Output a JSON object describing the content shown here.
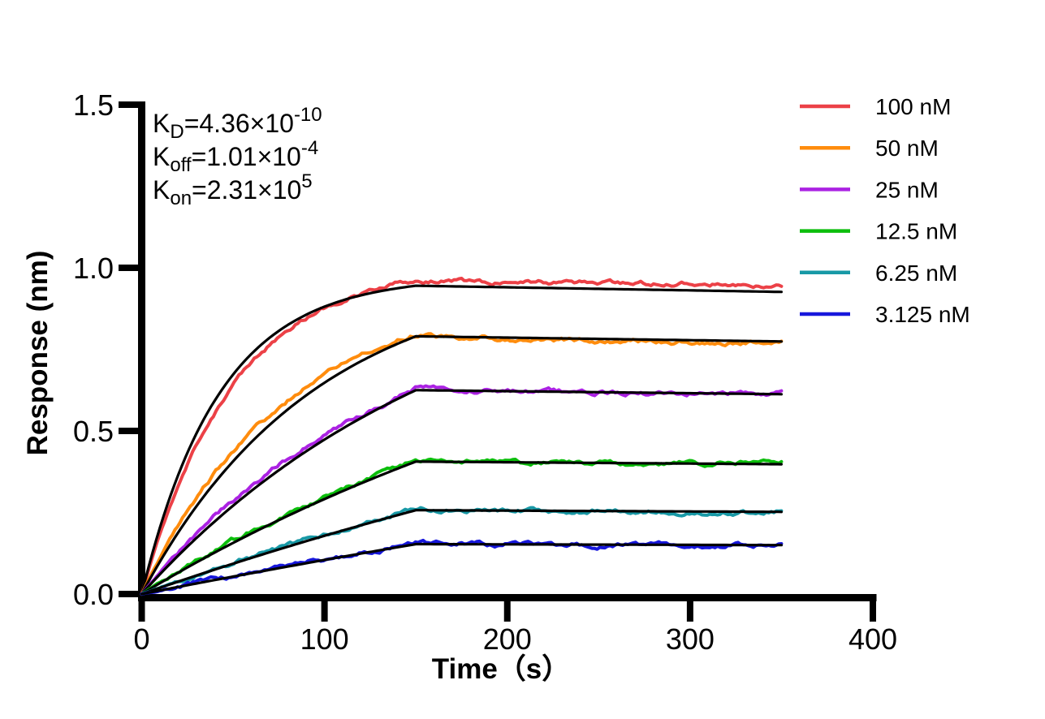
{
  "page": {
    "background": "#ffffff"
  },
  "annotations": {
    "kinetics_lines": [
      {
        "base": "K",
        "sub": "D",
        "value": "=4.36×10",
        "exponent": "-10"
      },
      {
        "base": "K",
        "sub": "off",
        "value": "=1.01×10",
        "exponent": "-4"
      },
      {
        "base": "K",
        "sub": "on",
        "value": "=2.31×10",
        "exponent": "5"
      }
    ]
  },
  "chart_data": {
    "type": "line",
    "title": "",
    "xlabel": "Time（s）",
    "ylabel": "Response (nm)",
    "xlim": [
      0,
      400
    ],
    "ylim": [
      0,
      1.5
    ],
    "xticks": {
      "values": [
        0,
        100,
        200,
        300,
        400
      ],
      "labels": [
        "0",
        "100",
        "200",
        "300",
        "400"
      ]
    },
    "yticks": {
      "values": [
        0,
        0.5,
        1.0,
        1.5
      ],
      "labels": [
        "0.0",
        "0.5",
        "1.0",
        "1.5"
      ]
    },
    "grid": false,
    "legend_position": "outside-top-right",
    "axis_color": "#000000",
    "fit_color": "#000000",
    "kinetics": {
      "KD": "4.36×10⁻¹⁰",
      "Koff": "1.01×10⁻⁴",
      "Kon": "2.31×10⁵"
    },
    "phases": {
      "association_s": [
        0,
        150
      ],
      "dissociation_s": [
        150,
        350
      ]
    },
    "series": [
      {
        "label": "100 nM",
        "color": "#EC4147",
        "kobs_per_s": 0.02,
        "response_at_150s": 0.962,
        "response_at_350s": 0.95,
        "fit": {
          "kobs_per_s": 0.0235,
          "response_at_150s": 0.945,
          "koff_per_s": 0.000101
        }
      },
      {
        "label": "50 nM",
        "color": "#FF8C0D",
        "kobs_per_s": 0.0125,
        "response_at_150s": 0.795,
        "response_at_350s": 0.77,
        "fit": {
          "kobs_per_s": 0.0105,
          "response_at_150s": 0.79,
          "koff_per_s": 0.000101
        }
      },
      {
        "label": "25 nM",
        "color": "#AB22E3",
        "kobs_per_s": 0.0068,
        "response_at_150s": 0.63,
        "response_at_350s": 0.616,
        "fit": {
          "kobs_per_s": 0.0058,
          "response_at_150s": 0.625,
          "koff_per_s": 0.000101
        }
      },
      {
        "label": "12.5 nM",
        "color": "#0CBE0C",
        "kobs_per_s": 0.0034,
        "response_at_150s": 0.41,
        "response_at_350s": 0.401,
        "fit": {
          "kobs_per_s": 0.0031,
          "response_at_150s": 0.406,
          "koff_per_s": 0.000101
        }
      },
      {
        "label": "6.25 nM",
        "color": "#1899A6",
        "kobs_per_s": 0.00185,
        "response_at_150s": 0.26,
        "response_at_350s": 0.252,
        "fit": {
          "kobs_per_s": 0.0017,
          "response_at_150s": 0.257,
          "koff_per_s": 0.000101
        }
      },
      {
        "label": "3.125 nM",
        "color": "#1717DC",
        "kobs_per_s": 0.00105,
        "response_at_150s": 0.157,
        "response_at_350s": 0.149,
        "fit": {
          "kobs_per_s": 0.00095,
          "response_at_150s": 0.153,
          "koff_per_s": 0.000101
        }
      }
    ]
  }
}
